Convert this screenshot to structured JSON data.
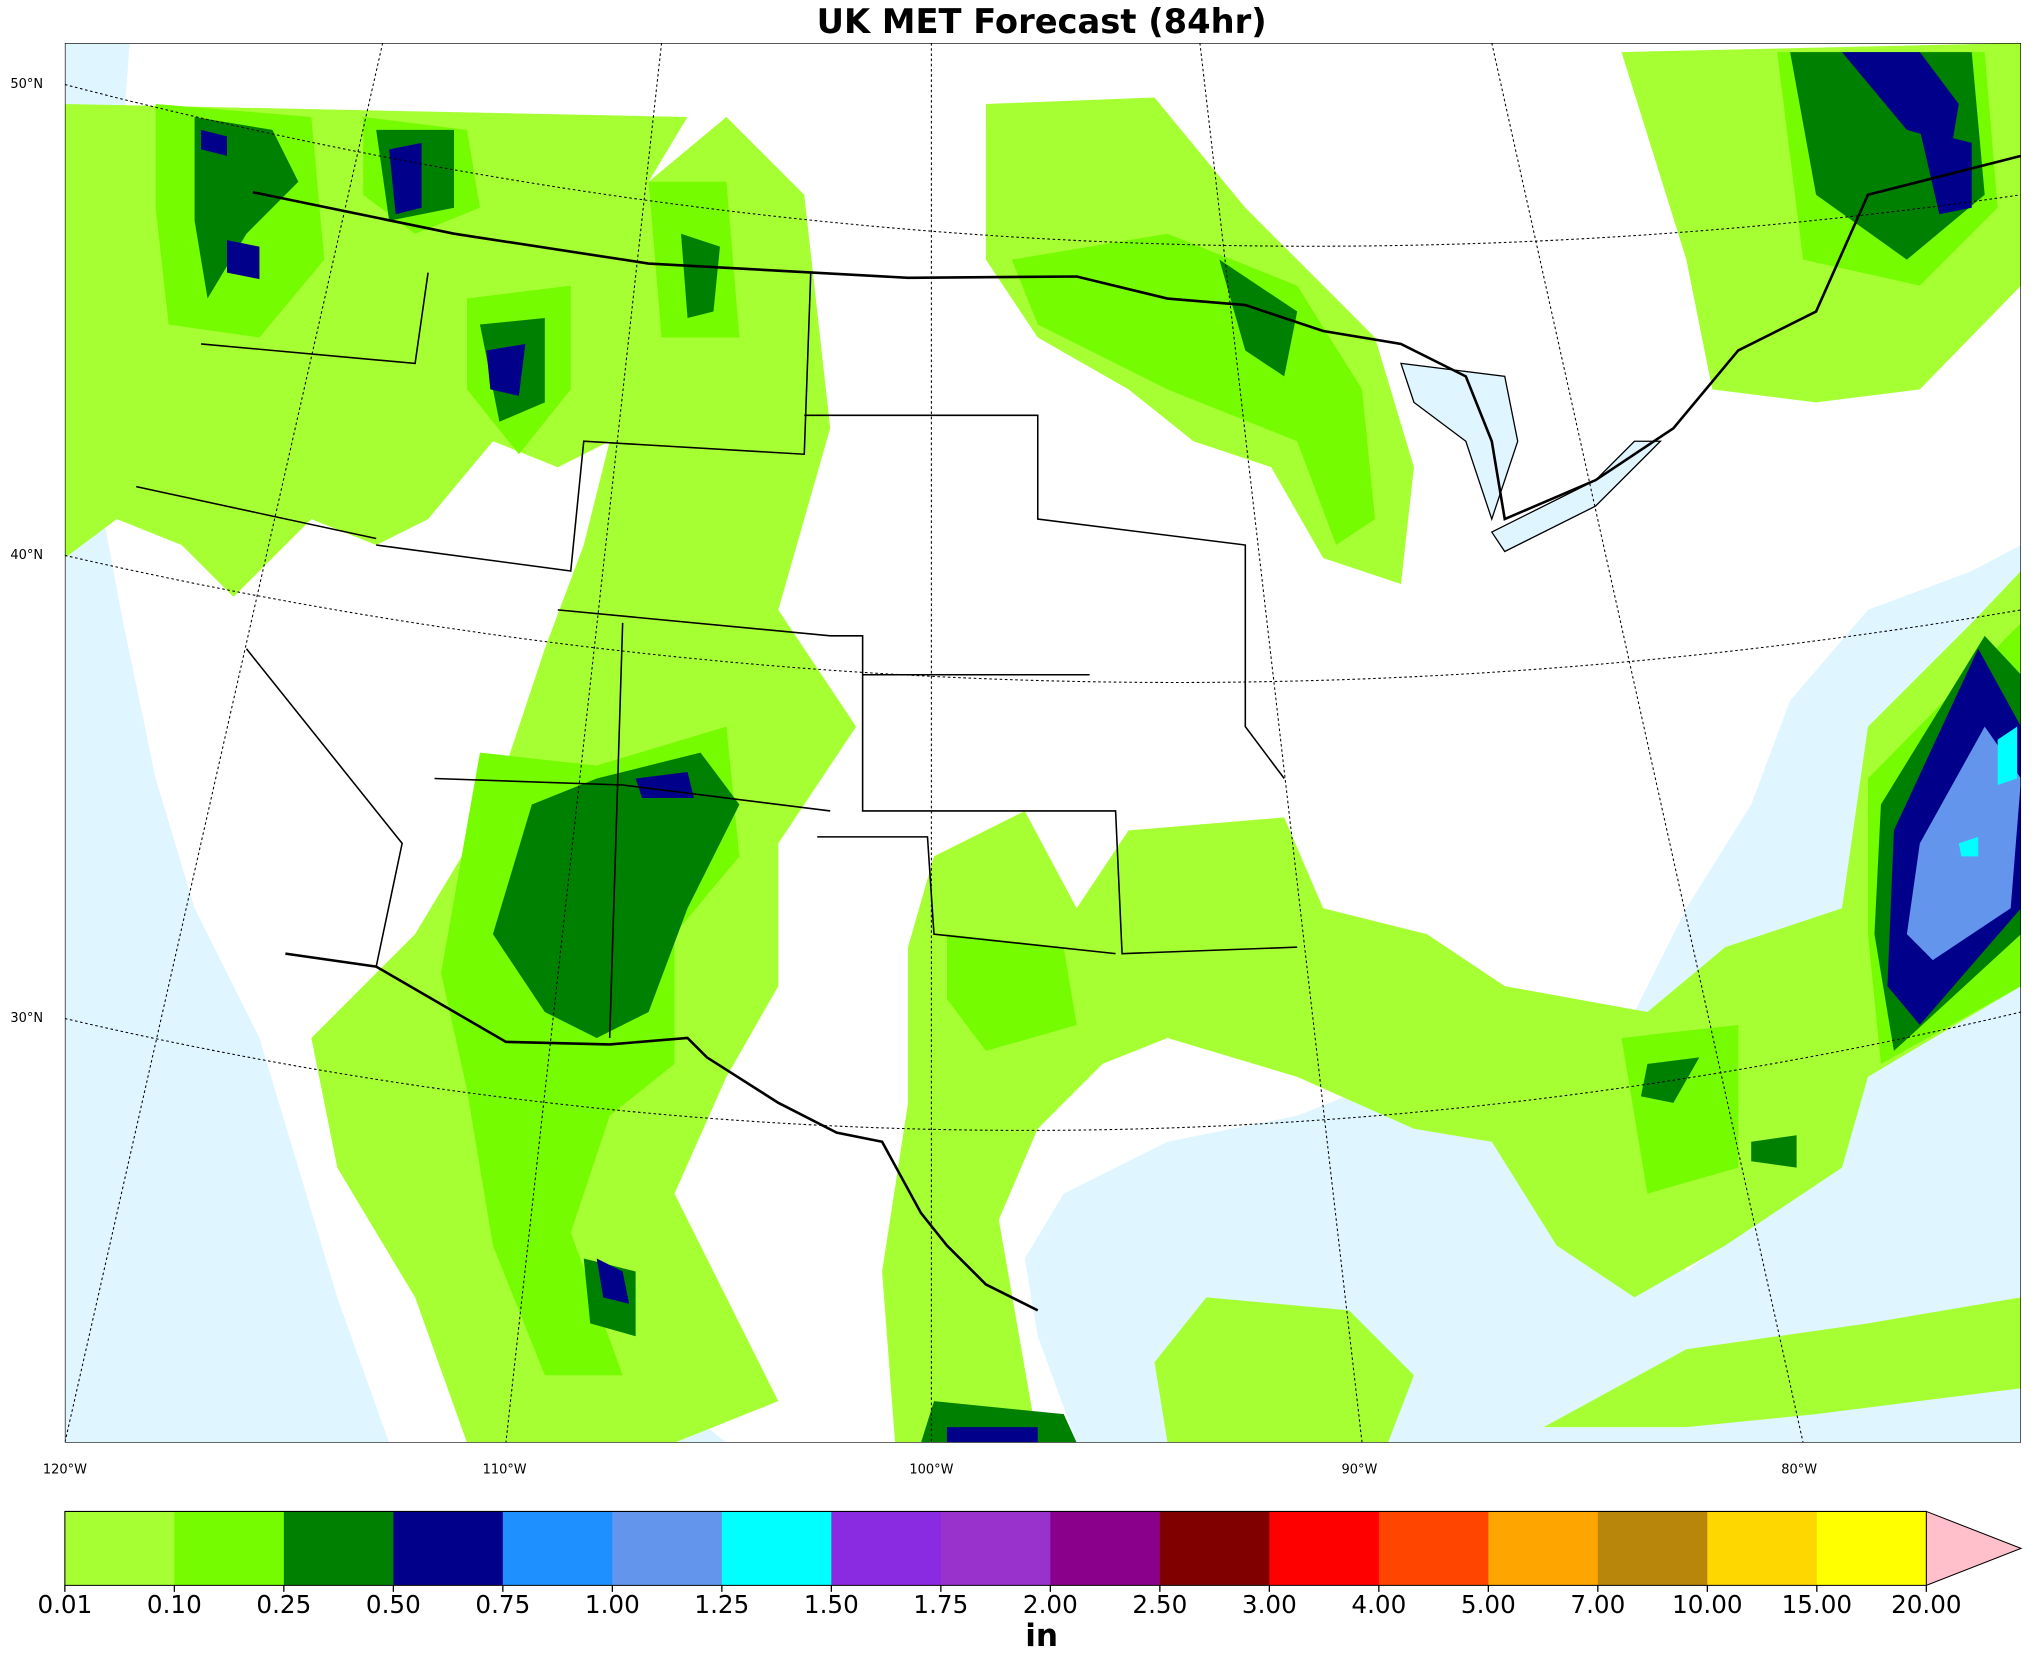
{
  "title": "UK MET Forecast (84hr)",
  "map": {
    "lat_labels": [
      "50°N",
      "40°N",
      "30°N"
    ],
    "lon_labels": [
      "120°W",
      "110°W",
      "100°W",
      "90°W",
      "80°W"
    ]
  },
  "colorbar": {
    "colors": [
      "#a6ff33",
      "#76fc00",
      "#008000",
      "#00008b",
      "#1e90ff",
      "#6495ed",
      "#00ffff",
      "#8a2be2",
      "#9932cc",
      "#8b008b",
      "#800000",
      "#ff0000",
      "#ff4500",
      "#ffa500",
      "#b8860b",
      "#ffd700",
      "#ffff00"
    ],
    "extend_color": "#ffc0cb",
    "ticks": [
      0.01,
      {
        "value": 0.1,
        "label": "0.10"
      },
      0.25,
      {
        "value": 0.5,
        "label": "0.50"
      },
      0.75,
      {
        "value": 1,
        "label": "1.00"
      },
      1.25,
      {
        "value": 1.5,
        "label": "1.50"
      },
      1.75,
      {
        "value": 2,
        "label": "2.00"
      },
      {
        "value": 2.5,
        "label": "2.50"
      },
      {
        "value": 3,
        "label": "3.00"
      },
      {
        "value": 4,
        "label": "4.00"
      },
      {
        "value": 5,
        "label": "5.00"
      },
      {
        "value": 7,
        "label": "7.00"
      },
      {
        "value": 10,
        "label": "10.00"
      },
      {
        "value": 15,
        "label": "15.00"
      },
      {
        "value": 20,
        "label": "20.00"
      }
    ],
    "unit": "in"
  }
}
